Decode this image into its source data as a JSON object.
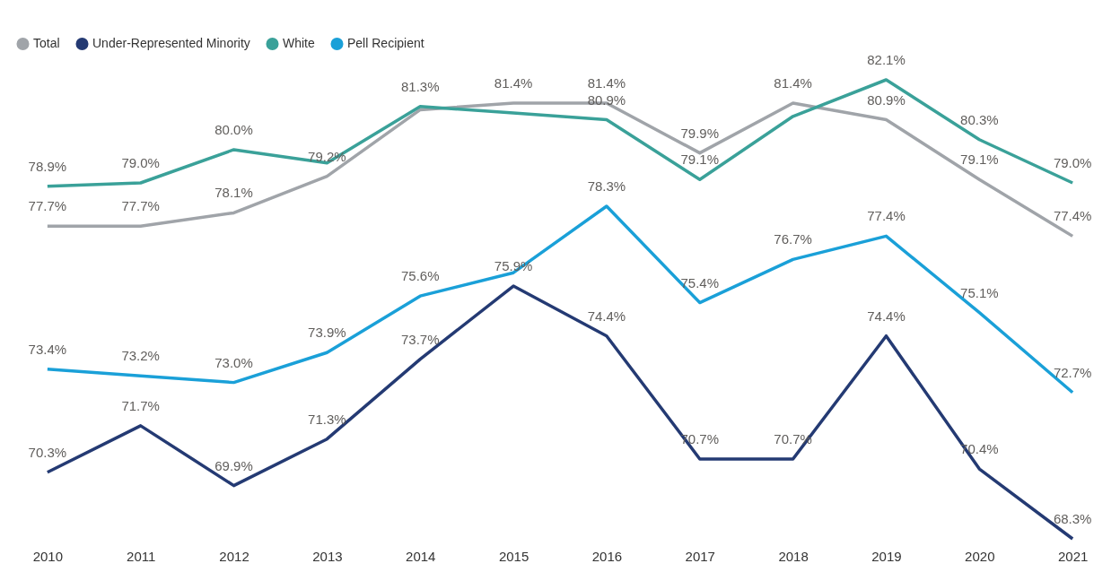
{
  "chart_data": {
    "type": "line",
    "categories": [
      "2010",
      "2011",
      "2012",
      "2013",
      "2014",
      "2015",
      "2016",
      "2017",
      "2018",
      "2019",
      "2020",
      "2021"
    ],
    "series": [
      {
        "name": "Total",
        "color": "#a0a4a9",
        "values": [
          77.7,
          77.7,
          78.1,
          79.2,
          81.2,
          81.4,
          81.4,
          79.9,
          81.4,
          80.9,
          79.1,
          77.4
        ],
        "value_labels": [
          "77.7%",
          "77.7%",
          "78.1%",
          "79.2%",
          null,
          "81.4%",
          "81.4%",
          "79.9%",
          "81.4%",
          "80.9%",
          "79.1%",
          "77.4%"
        ]
      },
      {
        "name": "Under-Represented Minority",
        "color": "#243a73",
        "values": [
          70.3,
          71.7,
          69.9,
          71.3,
          73.7,
          75.9,
          74.4,
          70.7,
          70.7,
          74.4,
          70.4,
          68.3
        ],
        "value_labels": [
          "70.3%",
          "71.7%",
          "69.9%",
          "71.3%",
          "73.7%",
          "75.9%",
          "74.4%",
          "70.7%",
          "70.7%",
          "74.4%",
          "70.4%",
          "68.3%"
        ]
      },
      {
        "name": "White",
        "color": "#3aa199",
        "values": [
          78.9,
          79.0,
          80.0,
          79.6,
          81.3,
          81.1,
          80.9,
          79.1,
          81.0,
          82.1,
          80.3,
          79.0
        ],
        "value_labels": [
          "78.9%",
          "79.0%",
          "80.0%",
          null,
          "81.3%",
          null,
          "80.9%",
          "79.1%",
          null,
          "82.1%",
          "80.3%",
          "79.0%"
        ]
      },
      {
        "name": "Pell Recipient",
        "color": "#1aa0d8",
        "values": [
          73.4,
          73.2,
          73.0,
          73.9,
          75.6,
          76.3,
          78.3,
          75.4,
          76.7,
          77.4,
          75.1,
          72.7
        ],
        "value_labels": [
          "73.4%",
          "73.2%",
          "73.0%",
          "73.9%",
          "75.6%",
          null,
          "78.3%",
          "75.4%",
          "76.7%",
          "77.4%",
          "75.1%",
          "72.7%"
        ]
      }
    ],
    "tick_labels": "x",
    "legend": "top left"
  }
}
